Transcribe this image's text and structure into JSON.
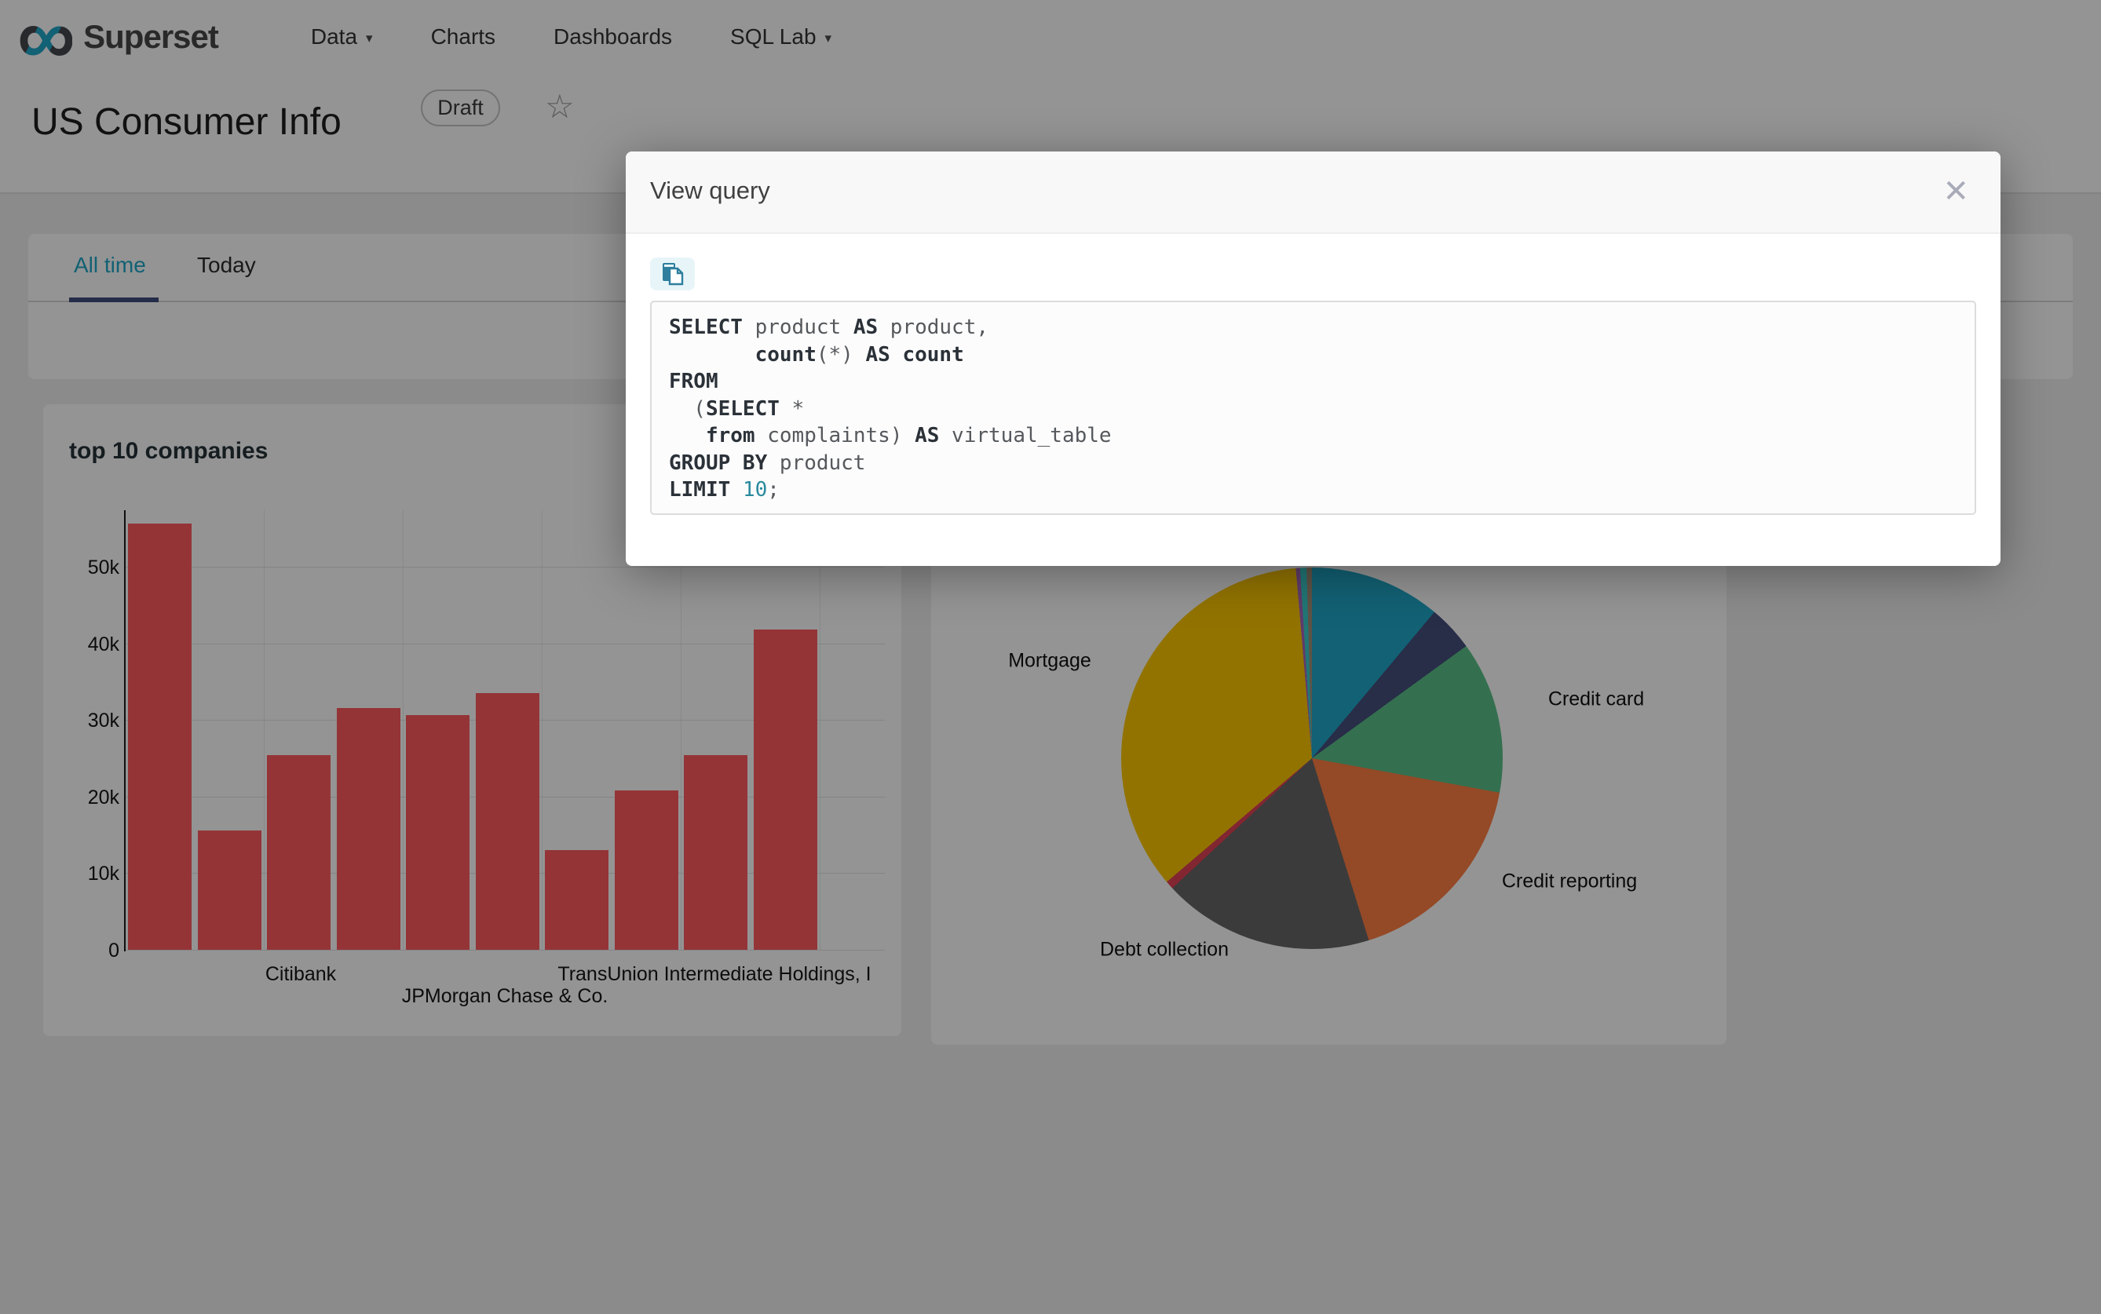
{
  "navbar": {
    "logo_glyph": "∞",
    "logo_text": "Superset",
    "items": [
      {
        "label": "Data",
        "caret": "▾"
      },
      {
        "label": "Charts",
        "caret": ""
      },
      {
        "label": "Dashboards",
        "caret": ""
      },
      {
        "label": "SQL Lab",
        "caret": "▾"
      }
    ]
  },
  "page": {
    "title": "US Consumer Info",
    "badge": "Draft",
    "star_icon": "☆",
    "tabs": [
      {
        "label": "All time",
        "active": true
      },
      {
        "label": "Today",
        "active": false
      }
    ]
  },
  "modal": {
    "title": "View query",
    "close_icon": "✕",
    "copy_icon": "copy-to-clipboard",
    "sql_lines": [
      [
        [
          "kw",
          "SELECT"
        ],
        [
          "pl",
          " product "
        ],
        [
          "kw",
          "AS"
        ],
        [
          "pl",
          " product,"
        ]
      ],
      [
        [
          "pl",
          "       "
        ],
        [
          "kw",
          "count"
        ],
        [
          "pl",
          "(*) "
        ],
        [
          "kw",
          "AS"
        ],
        [
          "kw",
          " count"
        ]
      ],
      [
        [
          "kw",
          "FROM"
        ]
      ],
      [
        [
          "pl",
          "  ("
        ],
        [
          "kw",
          "SELECT"
        ],
        [
          "pl",
          " *"
        ]
      ],
      [
        [
          "pl",
          "   "
        ],
        [
          "kw",
          "from"
        ],
        [
          "pl",
          " complaints) "
        ],
        [
          "kw",
          "AS"
        ],
        [
          "pl",
          " virtual_table"
        ]
      ],
      [
        [
          "kw",
          "GROUP BY"
        ],
        [
          "pl",
          " product"
        ]
      ],
      [
        [
          "kw",
          "LIMIT"
        ],
        [
          "pl",
          " "
        ],
        [
          "num",
          "10"
        ],
        [
          "pl",
          ";"
        ]
      ]
    ]
  },
  "chart_data": [
    {
      "type": "bar",
      "title": "top 10 companies",
      "values": [
        55700,
        15600,
        25400,
        31600,
        30700,
        33500,
        13000,
        20800,
        25400,
        41800
      ],
      "bar_color": "#FF5A5F",
      "ylim": [
        0,
        57500
      ],
      "grid": true,
      "yticks": [
        {
          "label": "0",
          "value": 0
        },
        {
          "label": "10k",
          "value": 10000
        },
        {
          "label": "20k",
          "value": 20000
        },
        {
          "label": "30k",
          "value": 30000
        },
        {
          "label": "40k",
          "value": 40000
        },
        {
          "label": "50k",
          "value": 50000
        }
      ],
      "xtick_labels_visible": [
        {
          "label": "Citibank",
          "tick_index": 2,
          "row": 1
        },
        {
          "label": "JPMorgan Chase & Co.",
          "tick_index": 5,
          "row": 2
        },
        {
          "label": "TransUnion Intermediate Holdings, I",
          "tick_index": 8,
          "row": 1
        }
      ]
    },
    {
      "type": "pie",
      "title": "",
      "slices": [
        {
          "name": "",
          "pct": 11.1,
          "color": "#1FA8C9"
        },
        {
          "name": "",
          "pct": 3.9,
          "color": "#454E7C"
        },
        {
          "name": "Credit card",
          "pct": 12.9,
          "color": "#5AC189"
        },
        {
          "name": "Credit reporting",
          "pct": 17.3,
          "color": "#FF7F44"
        },
        {
          "name": "Debt collection",
          "pct": 17.9,
          "color": "#666666"
        },
        {
          "name": "",
          "pct": 0.7,
          "color": "#E04355"
        },
        {
          "name": "Mortgage",
          "pct": 34.9,
          "color": "#FCC700"
        },
        {
          "name": "",
          "pct": 0.35,
          "color": "#A868B7"
        },
        {
          "name": "",
          "pct": 0.55,
          "color": "#3CCCCB"
        },
        {
          "name": "",
          "pct": 0.45,
          "color": "#A38F79"
        }
      ],
      "legend_position": "none"
    }
  ],
  "colors": {
    "accent_teal": "#1FA8C9",
    "tab_ink": "#3D4C7E",
    "bar_red": "#FF5A5F",
    "overlay_mask": "rgba(0,0,0,0.42)",
    "card_bg": "#FFFFFF",
    "page_bg": "#F0F0F0"
  }
}
